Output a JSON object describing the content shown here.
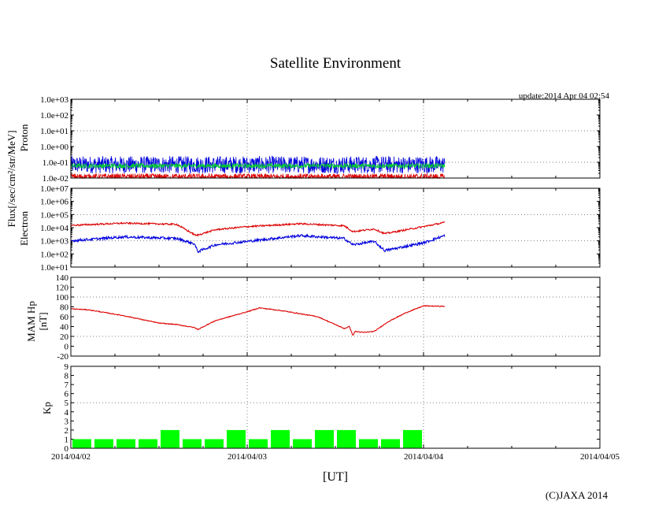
{
  "header": {
    "title": "Satellite Environment",
    "update": "update:2014 Apr 04 02:54",
    "copyright": "(C)JAXA 2014"
  },
  "x_axis": {
    "unit_label": "[UT]",
    "ticks": [
      "2014/04/02",
      "2014/04/03",
      "2014/04/04",
      "2014/04/05"
    ],
    "range_days": [
      0,
      3
    ],
    "data_end_day": 2.12
  },
  "y_labels": {
    "flux_unit": "Flux[/sec/cm²/str/MeV]",
    "proton": "Proton",
    "electron": "Electron",
    "hp_line1": "MAM Hp",
    "hp_line2": "[nT]",
    "kp": "Kp"
  },
  "colors": {
    "red": "#dd0000",
    "blue": "#0000dd",
    "green": "#00cc33",
    "kp_bar": "#00ff00",
    "grid": "#808080"
  },
  "chart_data": [
    {
      "type": "line",
      "title": "Proton",
      "ylabel": "Proton",
      "yscale": "log",
      "ylim": [
        0.01,
        1000
      ],
      "yticks": [
        "1.0e-02",
        "1.0e-01",
        "1.0e+00",
        "1.0e+01",
        "1.0e+02",
        "1.0e+03"
      ],
      "grid": true,
      "series": [
        {
          "name": "blue",
          "color": "#0000dd",
          "base_value": 0.07,
          "noise_decades": 0.55
        },
        {
          "name": "green",
          "color": "#00cc33",
          "base_value": 0.06,
          "noise_decades": 0.15
        },
        {
          "name": "red",
          "color": "#dd0000",
          "base_value": 0.012,
          "noise_decades": 0.2
        }
      ]
    },
    {
      "type": "line",
      "title": "Electron",
      "ylabel": "Electron",
      "yscale": "log",
      "ylim": [
        10,
        10000000
      ],
      "yticks": [
        "1.0e+01",
        "1.0e+02",
        "1.0e+03",
        "1.0e+04",
        "1.0e+05",
        "1.0e+06",
        "1.0e+07"
      ],
      "grid": true,
      "series": [
        {
          "name": "red",
          "color": "#dd0000",
          "x": [
            0,
            0.3,
            0.6,
            0.71,
            0.82,
            1.0,
            1.3,
            1.55,
            1.6,
            1.72,
            1.78,
            2.0,
            2.12
          ],
          "y": [
            15000,
            22000,
            18000,
            2500,
            7000,
            12000,
            20000,
            14000,
            5000,
            8000,
            3500,
            12000,
            25000
          ]
        },
        {
          "name": "blue",
          "color": "#0000dd",
          "x": [
            0,
            0.3,
            0.6,
            0.7,
            0.72,
            0.82,
            1.0,
            1.3,
            1.55,
            1.6,
            1.72,
            1.78,
            2.0,
            2.12
          ],
          "y": [
            1000,
            2000,
            1500,
            600,
            150,
            500,
            900,
            2500,
            1500,
            500,
            900,
            180,
            700,
            2500
          ]
        }
      ]
    },
    {
      "type": "line",
      "title": "MAM Hp",
      "ylabel": "MAM Hp [nT]",
      "yscale": "linear",
      "ylim": [
        -20,
        140
      ],
      "yticks": [
        "-20",
        "0",
        "20",
        "40",
        "60",
        "80",
        "100",
        "120",
        "140"
      ],
      "grid": true,
      "series": [
        {
          "name": "red",
          "color": "#dd0000",
          "x": [
            0,
            0.1,
            0.3,
            0.5,
            0.6,
            0.7,
            0.72,
            0.82,
            1.0,
            1.07,
            1.2,
            1.4,
            1.55,
            1.58,
            1.6,
            1.61,
            1.66,
            1.72,
            1.8,
            1.9,
            2.0,
            2.12
          ],
          "y": [
            76,
            74,
            62,
            47,
            44,
            38,
            34,
            52,
            70,
            78,
            72,
            60,
            36,
            40,
            21,
            30,
            28,
            30,
            50,
            68,
            82,
            81
          ]
        }
      ]
    },
    {
      "type": "bar",
      "title": "Kp",
      "ylabel": "Kp",
      "ylim": [
        0,
        9
      ],
      "yticks": [
        "0",
        "1",
        "2",
        "3",
        "4",
        "5",
        "6",
        "7",
        "8",
        "9"
      ],
      "grid": true,
      "bar_width_days": 0.125,
      "values": [
        1,
        1,
        1,
        1,
        2,
        1,
        1,
        2,
        1,
        2,
        1,
        2,
        2,
        1,
        1,
        2
      ]
    }
  ]
}
